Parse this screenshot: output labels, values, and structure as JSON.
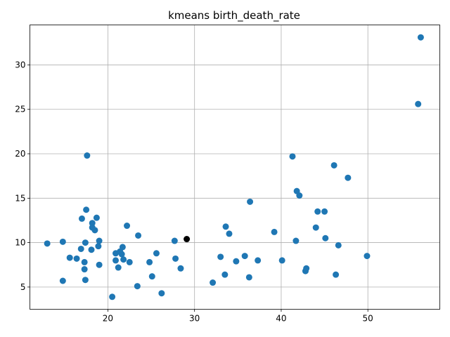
{
  "chart_data": {
    "type": "scatter",
    "title": "kmeans birth_death_rate",
    "xlabel": "",
    "ylabel": "",
    "xlim": [
      11.0,
      58.3
    ],
    "ylim": [
      2.5,
      34.5
    ],
    "xticks": [
      20,
      30,
      40,
      50
    ],
    "yticks": [
      5,
      10,
      15,
      20,
      25,
      30
    ],
    "grid": true,
    "colors": {
      "points": "#1f77b4",
      "centroid": "#000000"
    },
    "series": [
      {
        "points": [
          [
            13.0,
            9.9
          ],
          [
            14.8,
            10.1
          ],
          [
            14.8,
            5.7
          ],
          [
            15.6,
            8.3
          ],
          [
            16.4,
            8.2
          ],
          [
            16.9,
            9.3
          ],
          [
            17.0,
            12.7
          ],
          [
            17.3,
            7.0
          ],
          [
            17.3,
            7.8
          ],
          [
            17.4,
            5.8
          ],
          [
            17.4,
            10.0
          ],
          [
            17.5,
            13.7
          ],
          [
            17.6,
            19.8
          ],
          [
            18.1,
            9.2
          ],
          [
            18.2,
            12.2
          ],
          [
            18.2,
            11.7
          ],
          [
            18.5,
            11.4
          ],
          [
            18.7,
            12.8
          ],
          [
            18.9,
            9.6
          ],
          [
            19.0,
            10.2
          ],
          [
            19.0,
            7.5
          ],
          [
            20.5,
            3.9
          ],
          [
            20.9,
            8.8
          ],
          [
            20.9,
            8.0
          ],
          [
            21.2,
            7.2
          ],
          [
            21.4,
            9.0
          ],
          [
            21.6,
            8.7
          ],
          [
            21.7,
            9.5
          ],
          [
            21.8,
            8.1
          ],
          [
            22.2,
            11.9
          ],
          [
            22.5,
            7.8
          ],
          [
            23.4,
            5.1
          ],
          [
            23.5,
            10.8
          ],
          [
            24.8,
            7.8
          ],
          [
            25.1,
            6.2
          ],
          [
            25.6,
            8.8
          ],
          [
            26.2,
            4.3
          ],
          [
            27.7,
            10.2
          ],
          [
            27.8,
            8.2
          ],
          [
            28.4,
            7.1
          ],
          [
            32.1,
            5.5
          ],
          [
            33.0,
            8.4
          ],
          [
            33.5,
            6.4
          ],
          [
            33.6,
            11.8
          ],
          [
            34.0,
            11.0
          ],
          [
            34.8,
            7.9
          ],
          [
            35.8,
            8.5
          ],
          [
            36.3,
            6.1
          ],
          [
            36.4,
            14.6
          ],
          [
            37.3,
            8.0
          ],
          [
            39.2,
            11.2
          ],
          [
            40.1,
            8.0
          ],
          [
            41.3,
            19.7
          ],
          [
            41.7,
            10.2
          ],
          [
            41.8,
            15.8
          ],
          [
            42.1,
            15.3
          ],
          [
            42.8,
            6.8
          ],
          [
            42.9,
            7.1
          ],
          [
            44.0,
            11.7
          ],
          [
            44.2,
            13.5
          ],
          [
            45.0,
            13.5
          ],
          [
            45.1,
            10.5
          ],
          [
            46.1,
            18.7
          ],
          [
            46.3,
            6.4
          ],
          [
            46.6,
            9.7
          ],
          [
            47.7,
            17.3
          ],
          [
            49.9,
            8.5
          ],
          [
            55.8,
            25.6
          ],
          [
            56.1,
            33.1
          ]
        ]
      },
      {
        "points": [
          [
            29.1,
            10.4
          ]
        ]
      }
    ]
  }
}
